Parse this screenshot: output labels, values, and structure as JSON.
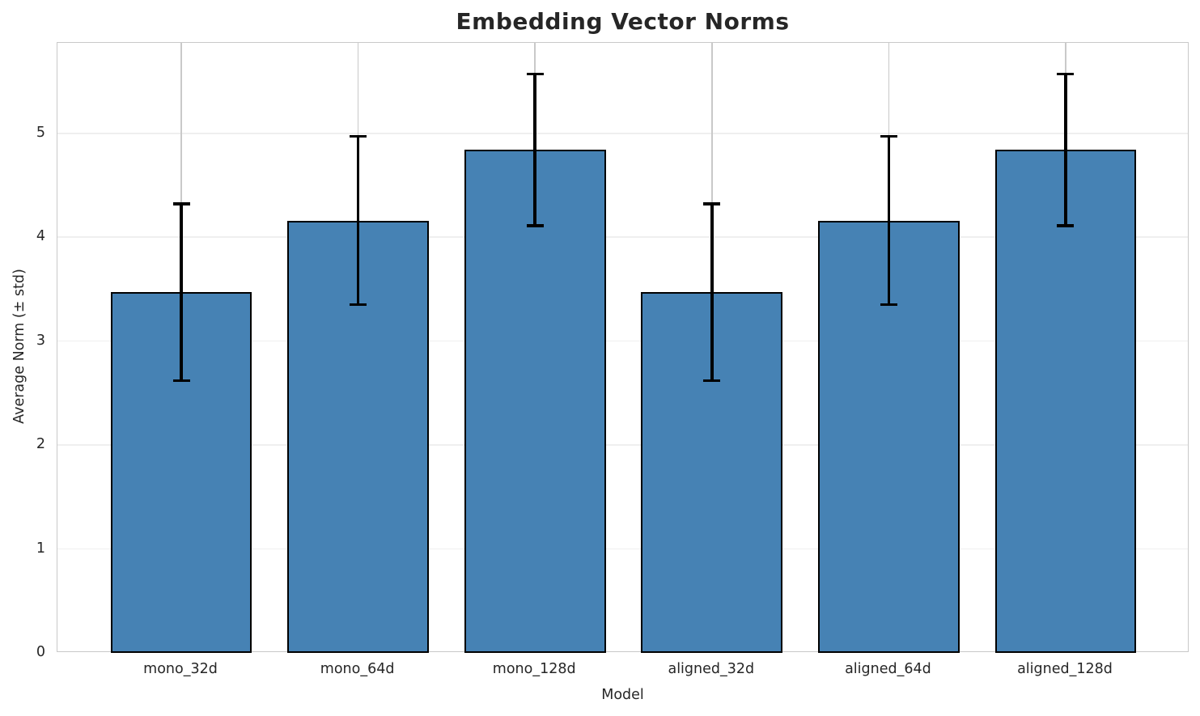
{
  "chart_data": {
    "type": "bar",
    "title": "Embedding Vector Norms",
    "xlabel": "Model",
    "ylabel": "Average Norm (± std)",
    "categories": [
      "mono_32d",
      "mono_64d",
      "mono_128d",
      "aligned_32d",
      "aligned_64d",
      "aligned_128d"
    ],
    "series": [
      {
        "name": "Average Norm (± std)",
        "values": [
          3.47,
          4.16,
          4.84,
          3.47,
          4.16,
          4.84
        ],
        "errors": [
          0.85,
          0.81,
          0.73,
          0.85,
          0.81,
          0.73
        ]
      }
    ],
    "error_ranges": [
      {
        "low": 2.62,
        "high": 4.32
      },
      {
        "low": 3.35,
        "high": 4.97
      },
      {
        "low": 4.11,
        "high": 5.57
      },
      {
        "low": 2.62,
        "high": 4.32
      },
      {
        "low": 3.35,
        "high": 4.97
      },
      {
        "low": 4.11,
        "high": 5.57
      }
    ],
    "yticks": [
      0,
      1,
      2,
      3,
      4,
      5
    ],
    "ylim": [
      0,
      5.87
    ],
    "grid": "both",
    "legend": "none",
    "colors": {
      "bar_fill": "#4682b4",
      "bar_edge": "#000000",
      "error_bar": "#000000",
      "hgrid": "#efefef",
      "vgrid": "#c9c9c9",
      "spine": "#c9c9c9",
      "text": "#262626"
    }
  }
}
